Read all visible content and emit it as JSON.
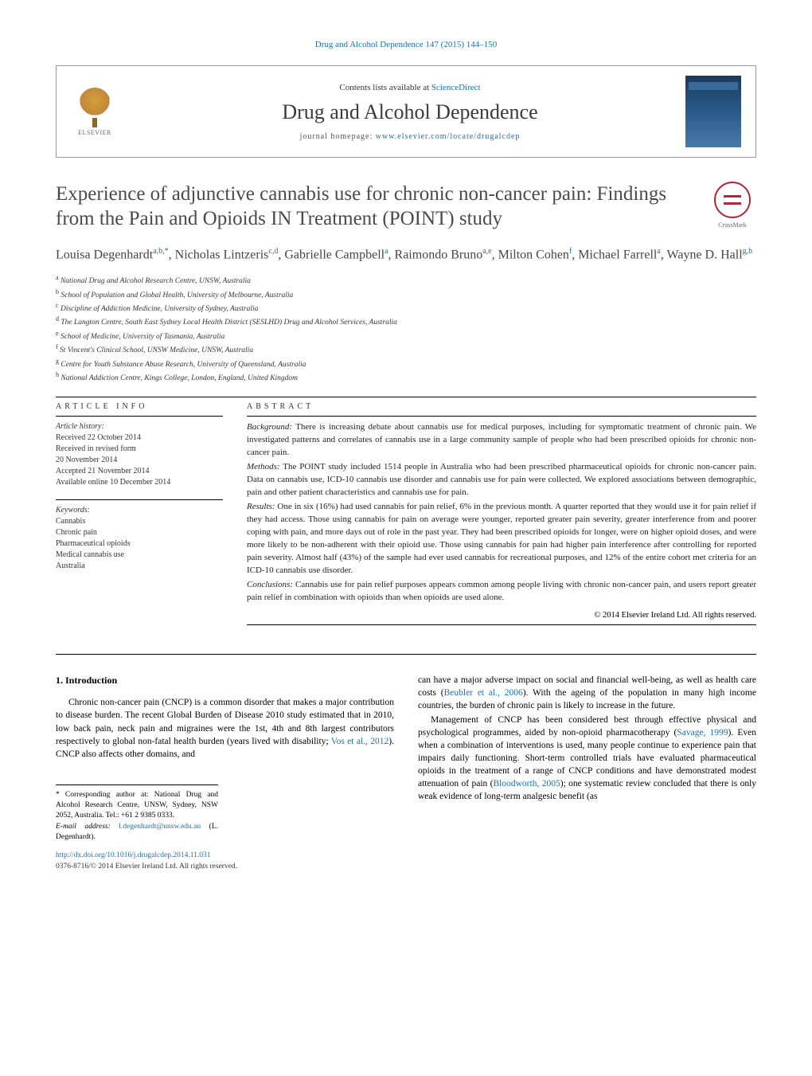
{
  "running_header": {
    "journal": "Drug and Alcohol Dependence",
    "citation": "147 (2015) 144–150"
  },
  "masthead": {
    "publisher": "ELSEVIER",
    "contents_prefix": "Contents lists available at ",
    "contents_link": "ScienceDirect",
    "journal_name": "Drug and Alcohol Dependence",
    "homepage_prefix": "journal homepage: ",
    "homepage_url": "www.elsevier.com/locate/drugalcdep"
  },
  "title": "Experience of adjunctive cannabis use for chronic non-cancer pain: Findings from the Pain and Opioids IN Treatment (POINT) study",
  "crossmark": "CrossMark",
  "authors_html": "Louisa Degenhardt<sup>a,b,*</sup>, Nicholas Lintzeris<sup>c,d</sup>, Gabrielle Campbell<sup>a</sup>, Raimondo Bruno<sup>a,e</sup>, Milton Cohen<sup>f</sup>, Michael Farrell<sup>a</sup>, Wayne D. Hall<sup>g,h</sup>",
  "affiliations": [
    {
      "key": "a",
      "text": "National Drug and Alcohol Research Centre, UNSW, Australia"
    },
    {
      "key": "b",
      "text": "School of Population and Global Health, University of Melbourne, Australia"
    },
    {
      "key": "c",
      "text": "Discipline of Addiction Medicine, University of Sydney, Australia"
    },
    {
      "key": "d",
      "text": "The Langton Centre, South East Sydney Local Health District (SESLHD) Drug and Alcohol Services, Australia"
    },
    {
      "key": "e",
      "text": "School of Medicine, University of Tasmania, Australia"
    },
    {
      "key": "f",
      "text": "St Vincent's Clinical School, UNSW Medicine, UNSW, Australia"
    },
    {
      "key": "g",
      "text": "Centre for Youth Substance Abuse Research, University of Queensland, Australia"
    },
    {
      "key": "h",
      "text": "National Addiction Centre, Kings College, London, England, United Kingdom"
    }
  ],
  "article_info": {
    "label": "ARTICLE INFO",
    "history_label": "Article history:",
    "history": [
      "Received 22 October 2014",
      "Received in revised form",
      "20 November 2014",
      "Accepted 21 November 2014",
      "Available online 10 December 2014"
    ],
    "keywords_label": "Keywords:",
    "keywords": [
      "Cannabis",
      "Chronic pain",
      "Pharmaceutical opioids",
      "Medical cannabis use",
      "Australia"
    ]
  },
  "abstract": {
    "label": "ABSTRACT",
    "sections": [
      {
        "head": "Background:",
        "text": "There is increasing debate about cannabis use for medical purposes, including for symptomatic treatment of chronic pain. We investigated patterns and correlates of cannabis use in a large community sample of people who had been prescribed opioids for chronic non-cancer pain."
      },
      {
        "head": "Methods:",
        "text": "The POINT study included 1514 people in Australia who had been prescribed pharmaceutical opioids for chronic non-cancer pain. Data on cannabis use, ICD-10 cannabis use disorder and cannabis use for pain were collected. We explored associations between demographic, pain and other patient characteristics and cannabis use for pain."
      },
      {
        "head": "Results:",
        "text": "One in six (16%) had used cannabis for pain relief, 6% in the previous month. A quarter reported that they would use it for pain relief if they had access. Those using cannabis for pain on average were younger, reported greater pain severity, greater interference from and poorer coping with pain, and more days out of role in the past year. They had been prescribed opioids for longer, were on higher opioid doses, and were more likely to be non-adherent with their opioid use. Those using cannabis for pain had higher pain interference after controlling for reported pain severity. Almost half (43%) of the sample had ever used cannabis for recreational purposes, and 12% of the entire cohort met criteria for an ICD-10 cannabis use disorder."
      },
      {
        "head": "Conclusions:",
        "text": "Cannabis use for pain relief purposes appears common among people living with chronic non-cancer pain, and users report greater pain relief in combination with opioids than when opioids are used alone."
      }
    ],
    "copyright": "© 2014 Elsevier Ireland Ltd. All rights reserved."
  },
  "body": {
    "intro_heading": "1. Introduction",
    "col1_p1": "Chronic non-cancer pain (CNCP) is a common disorder that makes a major contribution to disease burden. The recent Global Burden of Disease 2010 study estimated that in 2010, low back pain, neck pain and migraines were the 1st, 4th and 8th largest contributors respectively to global non-fatal health burden (years lived with disability; ",
    "col1_cite1": "Vos et al., 2012",
    "col1_p1_tail": "). CNCP also affects other domains, and",
    "col2_p1": "can have a major adverse impact on social and financial well-being, as well as health care costs (",
    "col2_cite1": "Beubler et al., 2006",
    "col2_p1_mid": "). With the ageing of the population in many high income countries, the burden of chronic pain is likely to increase in the future.",
    "col2_p2_a": "Management of CNCP has been considered best through effective physical and psychological programmes, aided by non-opioid pharmacotherapy (",
    "col2_cite2": "Savage, 1999",
    "col2_p2_b": "). Even when a combination of interventions is used, many people continue to experience pain that impairs daily functioning. Short-term controlled trials have evaluated pharmaceutical opioids in the treatment of a range of CNCP conditions and have demonstrated modest attenuation of pain (",
    "col2_cite3": "Bloodworth, 2005",
    "col2_p2_c": "); one systematic review concluded that there is only weak evidence of long-term analgesic benefit (as"
  },
  "footnotes": {
    "corr_prefix": "* Corresponding author at: National Drug and Alcohol Research Centre, UNSW, Sydney, NSW 2052, Australia. Tel.: +61 2 9385 0333.",
    "email_label": "E-mail address:",
    "email": "l.degenhardt@unsw.edu.au",
    "email_name": "(L. Degenhardt)."
  },
  "doi": "http://dx.doi.org/10.1016/j.drugalcdep.2014.11.031",
  "issn_line": "0376-8716/© 2014 Elsevier Ireland Ltd. All rights reserved.",
  "colors": {
    "link": "#1a6fb0",
    "text": "#000000",
    "muted": "#4a4a4a",
    "crossmark": "#b0283a"
  },
  "typography": {
    "title_fontsize": 25,
    "journal_fontsize": 26,
    "authors_fontsize": 16,
    "body_fontsize": 11.5,
    "abstract_fontsize": 11,
    "affil_fontsize": 9.5
  }
}
